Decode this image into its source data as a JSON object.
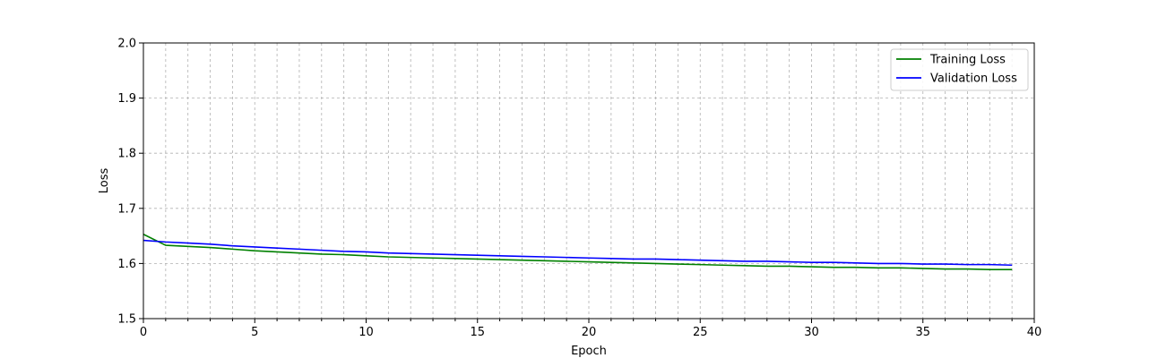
{
  "chart_data": {
    "type": "line",
    "title": "",
    "xlabel": "Epoch",
    "ylabel": "Loss",
    "xlim": [
      0,
      40
    ],
    "ylim": [
      1.5,
      2.0
    ],
    "xticks": [
      0,
      5,
      10,
      15,
      20,
      25,
      30,
      35,
      40
    ],
    "xtick_labels": [
      "0",
      "5",
      "10",
      "15",
      "20",
      "25",
      "30",
      "35",
      "40"
    ],
    "yticks": [
      1.5,
      1.6,
      1.7,
      1.8,
      1.9,
      2.0
    ],
    "ytick_labels": [
      "1.5",
      "1.6",
      "1.7",
      "1.8",
      "1.9",
      "2.0"
    ],
    "grid": true,
    "grid_minor": true,
    "legend_position": "top-right",
    "series": [
      {
        "name": "Training Loss",
        "color": "#008000",
        "x": [
          0,
          1,
          2,
          3,
          4,
          5,
          6,
          7,
          8,
          9,
          10,
          11,
          12,
          13,
          14,
          15,
          16,
          17,
          18,
          19,
          20,
          21,
          22,
          23,
          24,
          25,
          26,
          27,
          28,
          29,
          30,
          31,
          32,
          33,
          34,
          35,
          36,
          37,
          38,
          39
        ],
        "values": [
          1.653,
          1.633,
          1.631,
          1.629,
          1.626,
          1.623,
          1.621,
          1.619,
          1.617,
          1.616,
          1.614,
          1.612,
          1.611,
          1.61,
          1.609,
          1.608,
          1.607,
          1.606,
          1.605,
          1.604,
          1.603,
          1.602,
          1.601,
          1.6,
          1.599,
          1.598,
          1.597,
          1.596,
          1.595,
          1.595,
          1.594,
          1.593,
          1.593,
          1.592,
          1.592,
          1.591,
          1.59,
          1.59,
          1.589,
          1.589
        ]
      },
      {
        "name": "Validation Loss",
        "color": "#0000ff",
        "x": [
          0,
          1,
          2,
          3,
          4,
          5,
          6,
          7,
          8,
          9,
          10,
          11,
          12,
          13,
          14,
          15,
          16,
          17,
          18,
          19,
          20,
          21,
          22,
          23,
          24,
          25,
          26,
          27,
          28,
          29,
          30,
          31,
          32,
          33,
          34,
          35,
          36,
          37,
          38,
          39
        ],
        "values": [
          1.642,
          1.639,
          1.637,
          1.635,
          1.632,
          1.63,
          1.628,
          1.626,
          1.624,
          1.622,
          1.621,
          1.619,
          1.618,
          1.617,
          1.616,
          1.615,
          1.614,
          1.613,
          1.612,
          1.611,
          1.61,
          1.609,
          1.608,
          1.608,
          1.607,
          1.606,
          1.605,
          1.604,
          1.604,
          1.603,
          1.602,
          1.602,
          1.601,
          1.6,
          1.6,
          1.599,
          1.599,
          1.598,
          1.598,
          1.597
        ]
      }
    ]
  }
}
